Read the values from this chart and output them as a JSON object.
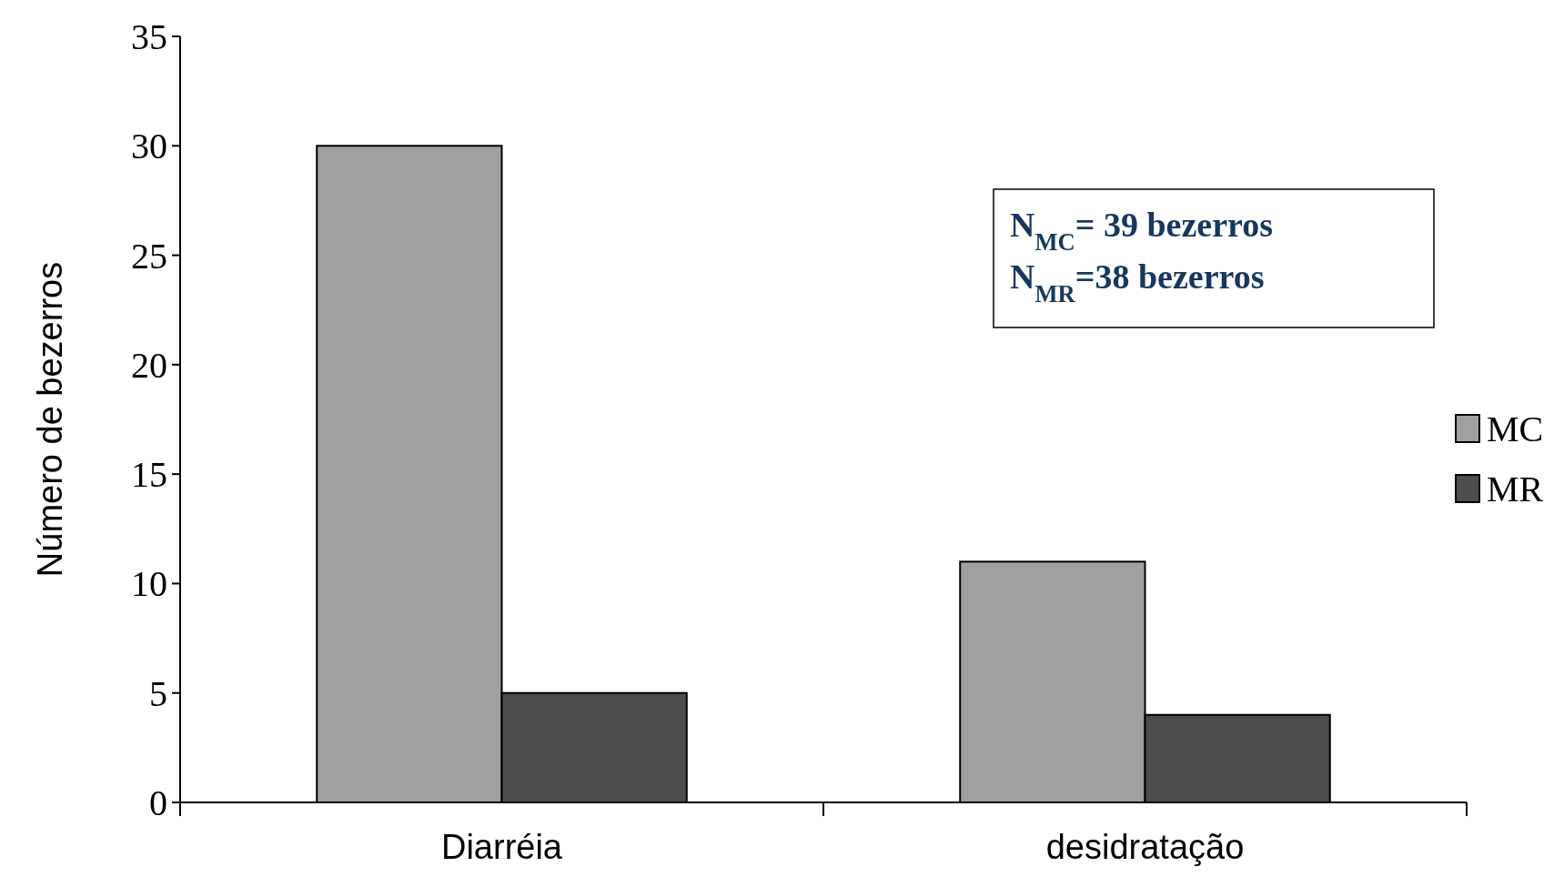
{
  "chart_data": {
    "type": "bar",
    "ylabel": "Número de bezerros",
    "categories": [
      "Diarréia",
      "desidratação"
    ],
    "series": [
      {
        "name": "MC",
        "color": "#a0a0a0",
        "values": [
          30,
          11
        ]
      },
      {
        "name": "MR",
        "color": "#4d4d4d",
        "values": [
          5,
          4
        ]
      }
    ],
    "ylim": [
      0,
      35
    ],
    "yticks": [
      0,
      5,
      10,
      15,
      20,
      25,
      30,
      35
    ],
    "grid": false,
    "legend": "right",
    "annotations": [
      "N$_{MC}$= 39 bezerros",
      "N$_{MR}$=38 bezerros"
    ]
  }
}
